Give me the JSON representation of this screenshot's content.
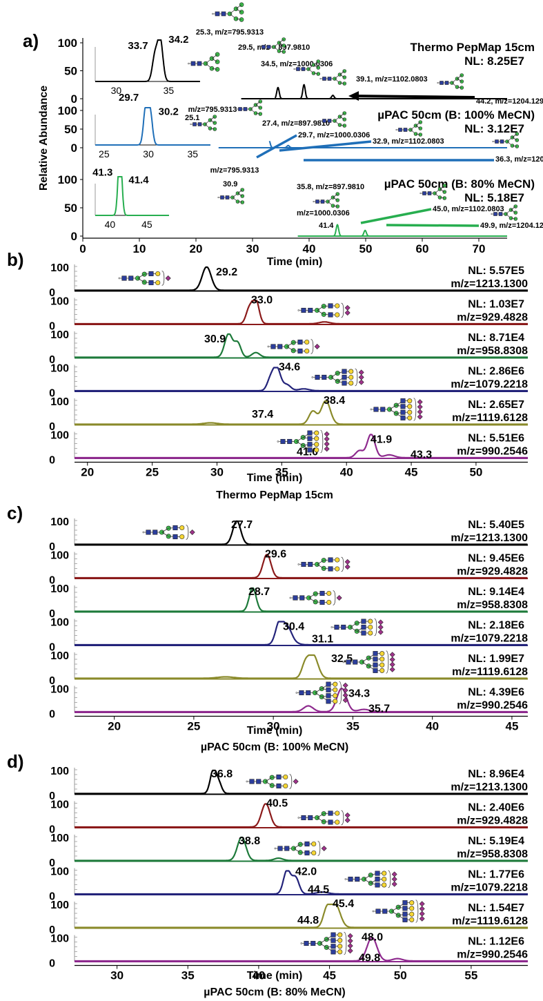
{
  "colors": {
    "black": "#000000",
    "blue": "#1f6fb8",
    "green": "#27ae4f",
    "darkred": "#8b1a1a",
    "darkgreen": "#1d7a3a",
    "navy": "#23237a",
    "olive": "#8a8a2a",
    "purple": "#8e2a8e",
    "glycan_blue": "#2c3e9c",
    "glycan_green": "#3cbf4b",
    "glycan_yellow": "#f5d634",
    "glycan_purple": "#a0338c"
  },
  "panel_a": {
    "label": "a)",
    "ylabel": "Relative Abundance",
    "xlabel": "Time (min)",
    "x_ticks": [
      "0",
      "10",
      "20",
      "30",
      "40",
      "50",
      "60",
      "70"
    ],
    "y_ticks": [
      "100",
      "50",
      "0"
    ],
    "traces": [
      {
        "title": "Thermo PepMap 15cm",
        "nl": "NL: 8.25E7",
        "color": "black",
        "inset_x_ticks": [
          "30",
          "35"
        ],
        "inset_labels": [
          "33.7",
          "34.2"
        ],
        "peak_labels": [
          "25.3, m/z=795.9313",
          "29.5, m/z = 897.9810",
          "34.5, m/z=1000.0306",
          "39.1, m/z=1102.0803",
          "44.2, m/z=1204.1299"
        ]
      },
      {
        "title": "µPAC 50cm (B: 100% MeCN)",
        "nl": "NL: 3.12E7",
        "color": "blue",
        "inset_x_ticks": [
          "25",
          "30",
          "35"
        ],
        "inset_labels": [
          "29.7",
          "30.2"
        ],
        "peak_labels": [
          "m/z=795.9313",
          "25.1",
          "27.4, m/z=897.9810",
          "29.7, m/z=1000.0306",
          "32.9, m/z=1102.0803",
          "36.3, m/z=1204.1299"
        ]
      },
      {
        "title": "µPAC 50cm (B: 80% MeCN)",
        "nl": "NL: 5.18E7",
        "color": "green",
        "inset_x_ticks": [
          "40",
          "45"
        ],
        "inset_labels": [
          "41.3",
          "41.4"
        ],
        "peak_labels": [
          "m/z=795.9313",
          "30.9",
          "35.8, m/z=897.9810",
          "m/z=1000.0306",
          "41.4",
          "45.0, m/z=1102.0803",
          "49.9, m/z=1204.1299"
        ]
      }
    ]
  },
  "panel_b": {
    "label": "b)",
    "xlabel": "Time (min)",
    "caption": "Thermo PepMap 15cm",
    "x_ticks": [
      "20",
      "25",
      "30",
      "35",
      "40",
      "45",
      "50"
    ]
  },
  "panel_c": {
    "label": "c)",
    "xlabel": "Time (min)",
    "caption": "µPAC 50cm (B: 100% MeCN)",
    "x_ticks": [
      "20",
      "25",
      "30",
      "35",
      "40",
      "45"
    ]
  },
  "panel_d": {
    "label": "d)",
    "xlabel": "Time (min)",
    "caption": "µPAC 50cm (B: 80% MeCN)",
    "x_ticks": [
      "30",
      "35",
      "40",
      "45",
      "50",
      "55"
    ]
  },
  "row_y_ticks": [
    "100",
    "0"
  ],
  "chart_data": [
    {
      "id": "a",
      "type": "line",
      "xlabel": "Time (min)",
      "ylabel": "Relative Abundance",
      "xlim": [
        0,
        75
      ],
      "ylim": [
        0,
        100
      ],
      "series": [
        {
          "name": "Thermo PepMap 15cm",
          "nl": "NL: 8.25E7",
          "peaks": [
            {
              "x": 25.3,
              "y": 100,
              "mz": "795.9313"
            },
            {
              "x": 29.5,
              "y": 68,
              "mz": "897.9810"
            },
            {
              "x": 34.5,
              "y": 20,
              "mz": "1000.0306"
            },
            {
              "x": 39.1,
              "y": 25,
              "mz": "1102.0803"
            },
            {
              "x": 44.2,
              "y": 6,
              "mz": "1204.1299"
            }
          ],
          "inset": {
            "xlim": [
              28,
              38
            ],
            "peaks": [
              {
                "x": 33.7,
                "y": 62
              },
              {
                "x": 34.2,
                "y": 100
              }
            ]
          }
        },
        {
          "name": "µPAC 50cm (B: 100% MeCN)",
          "nl": "NL: 3.12E7",
          "peaks": [
            {
              "x": 25.1,
              "y": 100,
              "mz": "795.9313"
            },
            {
              "x": 27.4,
              "y": 62,
              "mz": "897.9810"
            },
            {
              "x": 29.7,
              "y": 15,
              "mz": "1000.0306"
            },
            {
              "x": 32.9,
              "y": 20,
              "mz": "1102.0803"
            },
            {
              "x": 36.3,
              "y": 6,
              "mz": "1204.1299"
            }
          ],
          "inset": {
            "xlim": [
              24,
              37
            ],
            "peaks": [
              {
                "x": 29.7,
                "y": 100
              },
              {
                "x": 30.2,
                "y": 88
              }
            ]
          }
        },
        {
          "name": "µPAC 50cm (B: 80% MeCN)",
          "nl": "NL: 5.18E7",
          "peaks": [
            {
              "x": 30.9,
              "y": 100,
              "mz": "795.9313"
            },
            {
              "x": 35.8,
              "y": 70,
              "mz": "897.9810"
            },
            {
              "x": 41.4,
              "y": 15,
              "mz": "1000.0306"
            },
            {
              "x": 45.0,
              "y": 20,
              "mz": "1102.0803"
            },
            {
              "x": 49.9,
              "y": 10,
              "mz": "1204.1299"
            }
          ],
          "inset": {
            "xlim": [
              38,
              48
            ],
            "peaks": [
              {
                "x": 41.3,
                "y": 85
              },
              {
                "x": 41.4,
                "y": 90
              }
            ]
          }
        }
      ]
    },
    {
      "id": "b",
      "type": "line",
      "title": "Thermo PepMap 15cm",
      "xlabel": "Time (min)",
      "xlim": [
        19,
        54
      ],
      "ylim": [
        0,
        100
      ],
      "series": [
        {
          "color": "black",
          "nl": "NL: 5.57E5",
          "mz": "m/z=1213.1300",
          "labels": [
            "29.2"
          ],
          "peaks": [
            {
              "x": 29.2,
              "y": 100,
              "w": 0.35
            }
          ]
        },
        {
          "color": "darkred",
          "nl": "NL: 1.03E7",
          "mz": "m/z=929.4828",
          "labels": [
            "33.0"
          ],
          "peaks": [
            {
              "x": 32.5,
              "y": 65,
              "w": 0.25
            },
            {
              "x": 33.0,
              "y": 100,
              "w": 0.25
            },
            {
              "x": 38.3,
              "y": 8,
              "w": 0.4
            }
          ]
        },
        {
          "color": "darkgreen",
          "nl": "NL: 8.71E4",
          "mz": "m/z=958.8308",
          "labels": [
            "30.9"
          ],
          "peaks": [
            {
              "x": 30.9,
              "y": 100,
              "w": 0.3
            },
            {
              "x": 31.6,
              "y": 60,
              "w": 0.25
            },
            {
              "x": 33.0,
              "y": 20,
              "w": 0.3
            }
          ]
        },
        {
          "color": "navy",
          "nl": "NL: 2.86E6",
          "mz": "m/z=1079.2218",
          "labels": [
            "34.6"
          ],
          "peaks": [
            {
              "x": 34.1,
              "y": 40,
              "w": 0.25
            },
            {
              "x": 34.6,
              "y": 100,
              "w": 0.3
            },
            {
              "x": 35.4,
              "y": 25,
              "w": 0.3
            },
            {
              "x": 36.7,
              "y": 8,
              "w": 0.4
            }
          ]
        },
        {
          "color": "olive",
          "nl": "NL: 2.65E7",
          "mz": "m/z=1119.6128",
          "labels": [
            "37.4",
            "38.4"
          ],
          "peaks": [
            {
              "x": 29.5,
              "y": 6,
              "w": 0.5
            },
            {
              "x": 37.4,
              "y": 55,
              "w": 0.3
            },
            {
              "x": 38.4,
              "y": 100,
              "w": 0.35
            }
          ]
        },
        {
          "color": "purple",
          "nl": "NL: 5.51E6",
          "mz": "m/z=990.2546",
          "labels": [
            "41.0",
            "41.9",
            "43.3"
          ],
          "peaks": [
            {
              "x": 41.0,
              "y": 30,
              "w": 0.3
            },
            {
              "x": 41.9,
              "y": 100,
              "w": 0.3
            },
            {
              "x": 43.3,
              "y": 12,
              "w": 0.4
            }
          ]
        }
      ]
    },
    {
      "id": "c",
      "type": "line",
      "title": "µPAC 50cm (B: 100% MeCN)",
      "xlabel": "Time (min)",
      "xlim": [
        17.5,
        46
      ],
      "ylim": [
        0,
        100
      ],
      "series": [
        {
          "color": "black",
          "nl": "NL: 5.40E5",
          "mz": "m/z=1213.1300",
          "labels": [
            "27.7"
          ],
          "peaks": [
            {
              "x": 27.7,
              "y": 100,
              "w": 0.25
            }
          ]
        },
        {
          "color": "darkred",
          "nl": "NL: 9.45E6",
          "mz": "m/z=929.4828",
          "labels": [
            "29.6"
          ],
          "peaks": [
            {
              "x": 29.6,
              "y": 100,
              "w": 0.25
            }
          ]
        },
        {
          "color": "darkgreen",
          "nl": "NL: 9.14E4",
          "mz": "m/z=958.8308",
          "labels": [
            "28.7"
          ],
          "peaks": [
            {
              "x": 28.7,
              "y": 100,
              "w": 0.22
            }
          ]
        },
        {
          "color": "navy",
          "nl": "NL: 2.18E6",
          "mz": "m/z=1079.2218",
          "labels": [
            "30.4",
            "31.1"
          ],
          "peaks": [
            {
              "x": 30.4,
              "y": 100,
              "w": 0.25
            },
            {
              "x": 30.9,
              "y": 55,
              "w": 0.25
            },
            {
              "x": 31.1,
              "y": 15,
              "w": 0.35
            }
          ]
        },
        {
          "color": "olive",
          "nl": "NL: 1.99E7",
          "mz": "m/z=1119.6128",
          "labels": [
            "32.5"
          ],
          "peaks": [
            {
              "x": 27.0,
              "y": 6,
              "w": 0.5
            },
            {
              "x": 32.0,
              "y": 55,
              "w": 0.22
            },
            {
              "x": 32.5,
              "y": 100,
              "w": 0.3
            }
          ]
        },
        {
          "color": "purple",
          "nl": "NL: 4.39E6",
          "mz": "m/z=990.2546",
          "labels": [
            "34.3",
            "35.7"
          ],
          "peaks": [
            {
              "x": 32.2,
              "y": 25,
              "w": 0.3
            },
            {
              "x": 34.3,
              "y": 100,
              "w": 0.3
            },
            {
              "x": 35.7,
              "y": 10,
              "w": 0.35
            }
          ]
        }
      ]
    },
    {
      "id": "d",
      "type": "line",
      "title": "µPAC 50cm (B: 80% MeCN)",
      "xlabel": "Time (min)",
      "xlim": [
        27,
        59
      ],
      "ylim": [
        0,
        100
      ],
      "series": [
        {
          "color": "black",
          "nl": "NL: 8.96E4",
          "mz": "m/z=1213.1300",
          "labels": [
            "36.8"
          ],
          "peaks": [
            {
              "x": 36.8,
              "y": 100,
              "w": 0.22
            },
            {
              "x": 37.2,
              "y": 40,
              "w": 0.2
            }
          ]
        },
        {
          "color": "darkred",
          "nl": "NL: 2.40E6",
          "mz": "m/z=929.4828",
          "labels": [
            "40.5"
          ],
          "peaks": [
            {
              "x": 40.5,
              "y": 100,
              "w": 0.3
            }
          ]
        },
        {
          "color": "darkgreen",
          "nl": "NL: 5.19E4",
          "mz": "m/z=958.8308",
          "labels": [
            "38.8"
          ],
          "peaks": [
            {
              "x": 38.8,
              "y": 100,
              "w": 0.3
            },
            {
              "x": 41.4,
              "y": 10,
              "w": 0.3
            }
          ]
        },
        {
          "color": "navy",
          "nl": "NL: 1.77E6",
          "mz": "m/z=1079.2218",
          "labels": [
            "42.0",
            "44.5"
          ],
          "peaks": [
            {
              "x": 42.0,
              "y": 100,
              "w": 0.25
            },
            {
              "x": 42.6,
              "y": 70,
              "w": 0.25
            },
            {
              "x": 44.5,
              "y": 8,
              "w": 0.4
            }
          ]
        },
        {
          "color": "olive",
          "nl": "NL: 1.54E7",
          "mz": "m/z=1119.6128",
          "labels": [
            "44.8",
            "45.4"
          ],
          "peaks": [
            {
              "x": 44.8,
              "y": 70,
              "w": 0.25
            },
            {
              "x": 45.4,
              "y": 100,
              "w": 0.35
            }
          ]
        },
        {
          "color": "purple",
          "nl": "NL: 1.12E6",
          "mz": "m/z=990.2546",
          "labels": [
            "48.0",
            "49.8"
          ],
          "peaks": [
            {
              "x": 48.0,
              "y": 100,
              "w": 0.35
            },
            {
              "x": 49.8,
              "y": 10,
              "w": 0.35
            }
          ]
        }
      ]
    }
  ]
}
